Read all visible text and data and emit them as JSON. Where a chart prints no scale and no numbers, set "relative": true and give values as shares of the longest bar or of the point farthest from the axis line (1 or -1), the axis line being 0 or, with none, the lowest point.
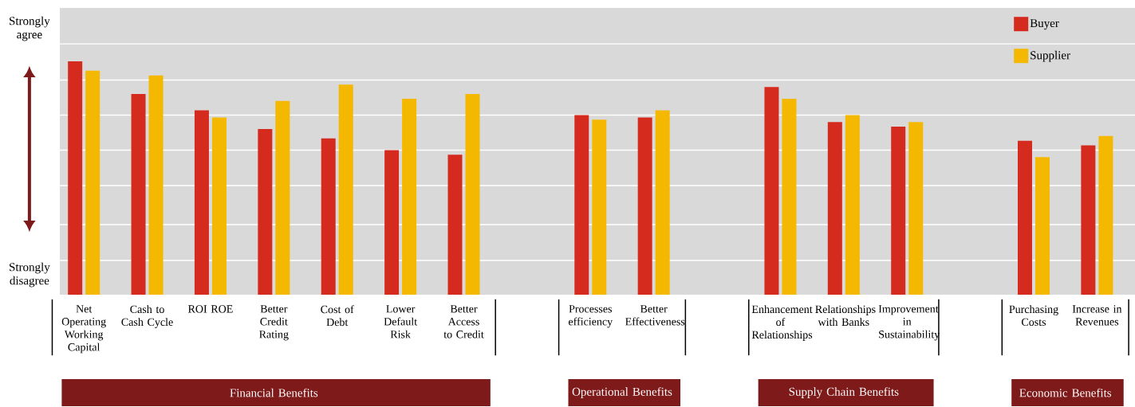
{
  "chart_data": {
    "type": "bar",
    "relative": true,
    "grid": "y",
    "legend": "top right",
    "categories": [
      "Net Operating Working Capital",
      "Cash to Cash Cycle",
      "ROI ROE",
      "Better Credit Rating",
      "Cost of Debt",
      "Lower Default Risk",
      "Better Access to Credit",
      null,
      "Processes efficiency",
      "Better Effectiveness",
      null,
      "Enhancement of Relationships",
      "Relationships with Banks",
      "Improvement in Sustainability",
      null,
      "Purchasing Costs",
      "Increase in Revenues"
    ],
    "series": [
      {
        "name": "Buyer",
        "color": "#d52b1e",
        "values": [
          1.0,
          0.86,
          0.79,
          0.71,
          0.67,
          0.62,
          0.6,
          null,
          0.77,
          0.76,
          null,
          0.89,
          0.74,
          0.72,
          null,
          0.66,
          0.64
        ]
      },
      {
        "name": "Supplier",
        "color": "#f5b800",
        "values": [
          0.96,
          0.94,
          0.76,
          0.83,
          0.9,
          0.84,
          0.86,
          null,
          0.75,
          0.79,
          null,
          0.84,
          0.77,
          0.74,
          null,
          0.59,
          0.68
        ]
      }
    ],
    "annotations": [
      "Strongly agree",
      "Strongly disagree",
      "Financial Benefits",
      "Operational Benefits",
      "Supply Chain Benefits",
      "Economic Benefits"
    ]
  }
}
